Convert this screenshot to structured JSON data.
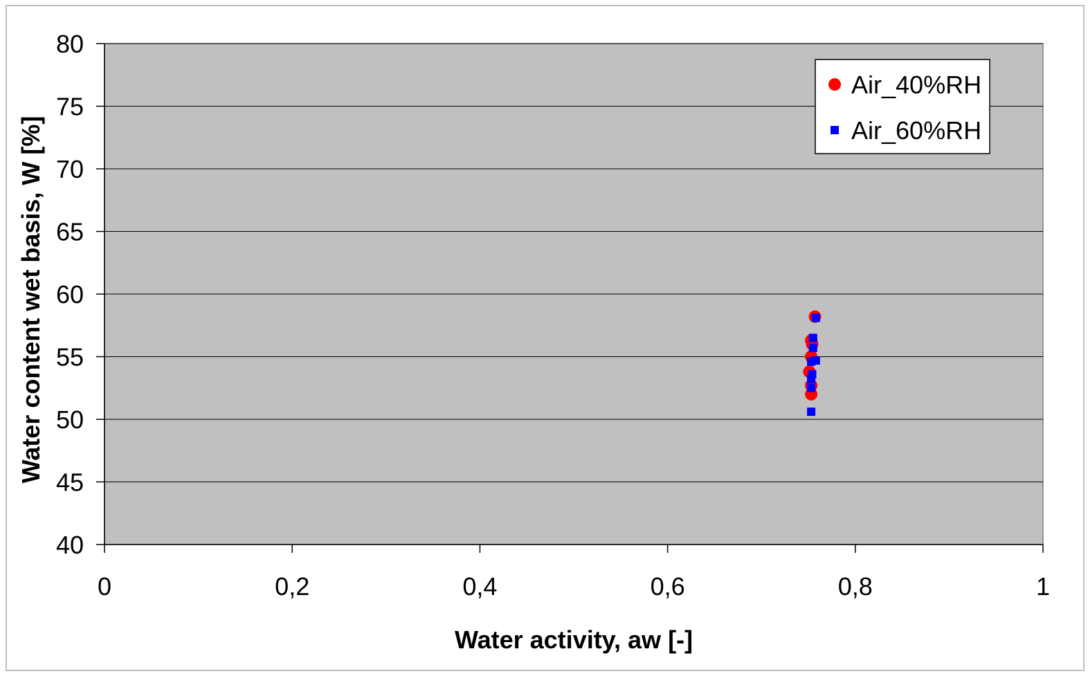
{
  "chart_data": {
    "type": "scatter",
    "xlabel": "Water activity, aw [-]",
    "ylabel": "Water content wet basis, W [%]",
    "xlim": [
      0,
      1
    ],
    "ylim": [
      40,
      80
    ],
    "x_ticks": [
      0,
      0.2,
      0.4,
      0.6,
      0.8,
      1
    ],
    "x_tick_labels": [
      "0",
      "0,2",
      "0,4",
      "0,6",
      "0,8",
      "1"
    ],
    "y_ticks": [
      40,
      45,
      50,
      55,
      60,
      65,
      70,
      75,
      80
    ],
    "y_tick_labels": [
      "40",
      "45",
      "50",
      "55",
      "60",
      "65",
      "70",
      "75",
      "80"
    ],
    "grid": "horizontal major gridlines",
    "plot_background": "#c0c0c0",
    "legend_position": "top-right",
    "series": [
      {
        "name": "Air_40%RH",
        "marker": "circle",
        "color": "#ff0000",
        "points": [
          {
            "x": 0.757,
            "y": 58.2
          },
          {
            "x": 0.753,
            "y": 56.3
          },
          {
            "x": 0.754,
            "y": 56.0
          },
          {
            "x": 0.753,
            "y": 55.0
          },
          {
            "x": 0.751,
            "y": 53.8
          },
          {
            "x": 0.753,
            "y": 52.7
          },
          {
            "x": 0.753,
            "y": 52.0
          }
        ]
      },
      {
        "name": "Air_60%RH",
        "marker": "square",
        "color": "#0000ff",
        "points": [
          {
            "x": 0.758,
            "y": 58.1
          },
          {
            "x": 0.755,
            "y": 56.5
          },
          {
            "x": 0.755,
            "y": 55.7
          },
          {
            "x": 0.758,
            "y": 54.7
          },
          {
            "x": 0.753,
            "y": 54.6
          },
          {
            "x": 0.754,
            "y": 53.6
          },
          {
            "x": 0.753,
            "y": 53.2
          },
          {
            "x": 0.753,
            "y": 52.5
          },
          {
            "x": 0.753,
            "y": 50.6
          }
        ]
      }
    ]
  }
}
